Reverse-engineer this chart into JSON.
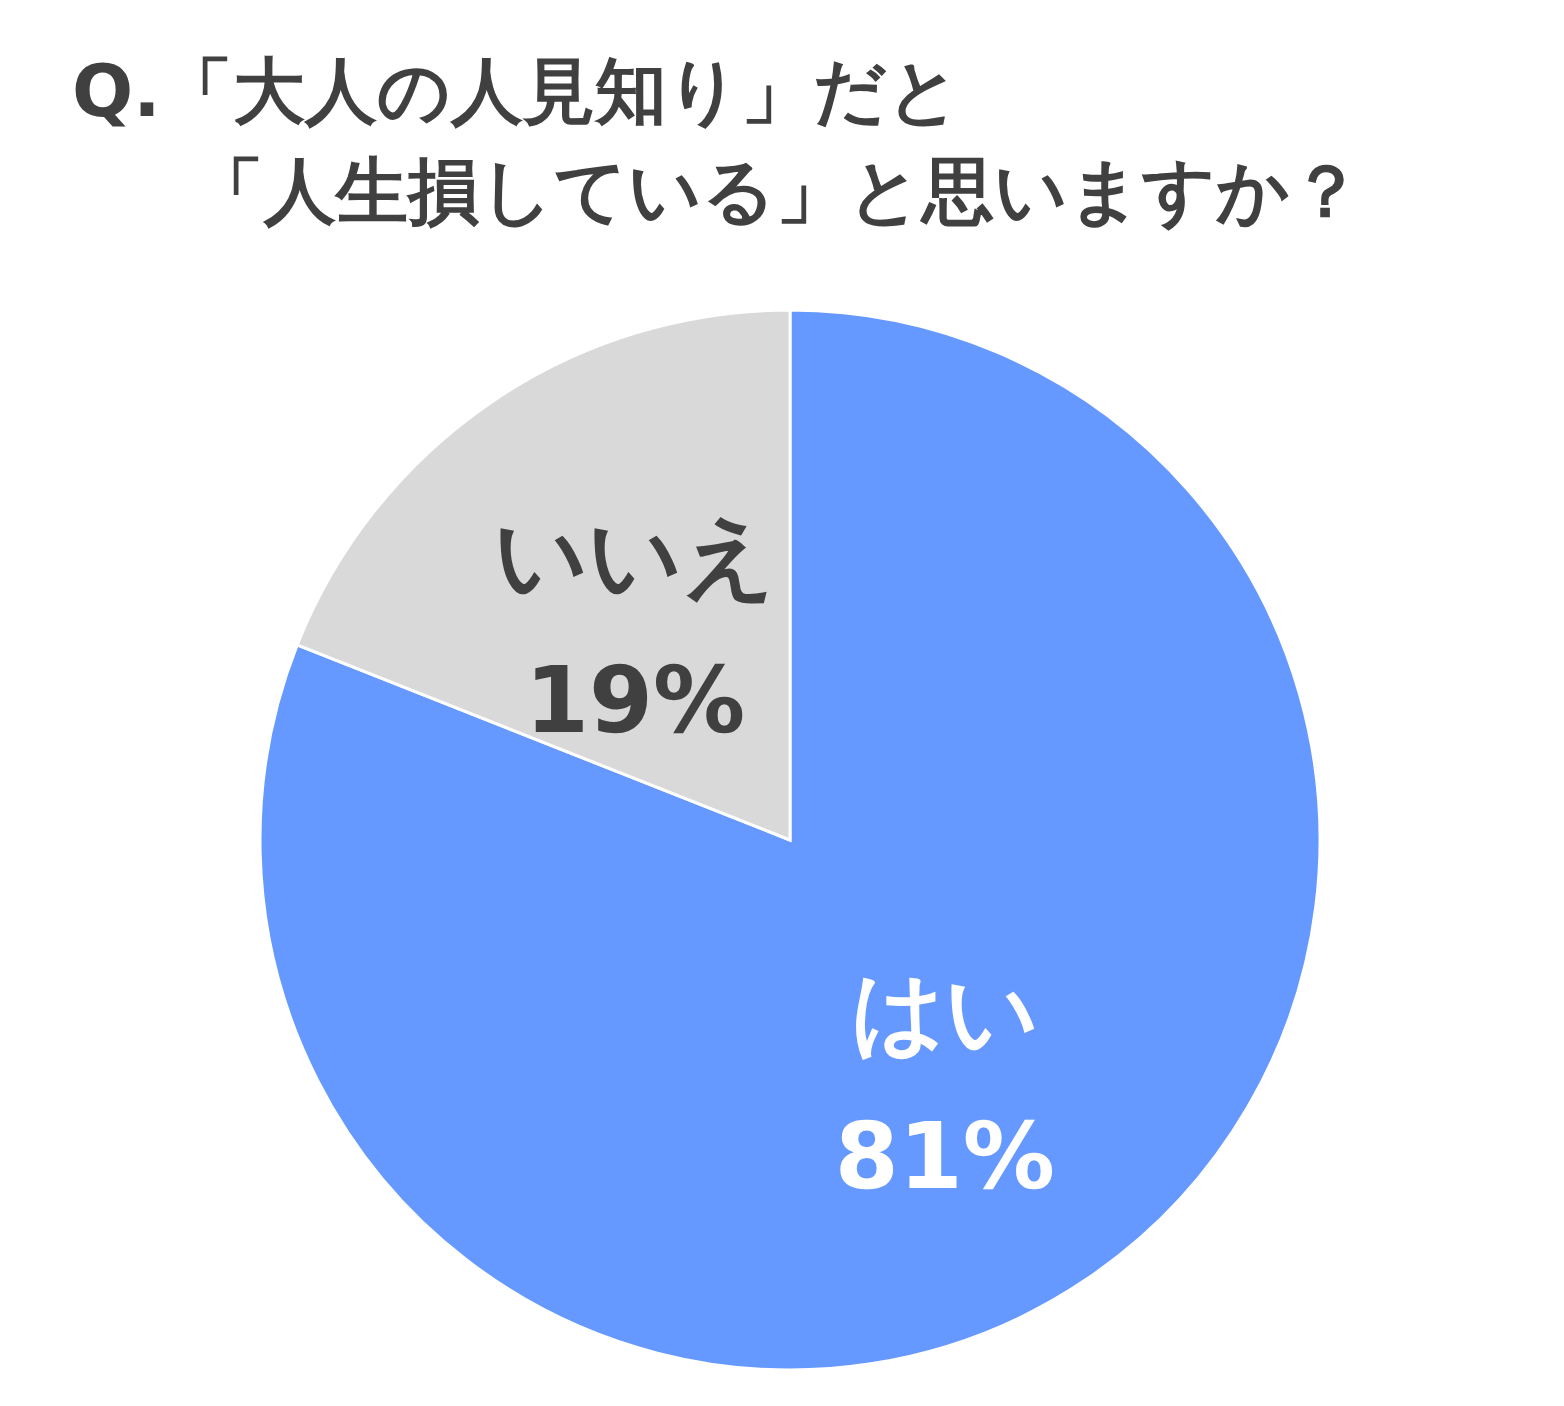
{
  "chart_data": {
    "type": "pie",
    "title": "Q.「大人の人見知り」だと",
    "subtitle": "「人生損している」と思いますか？",
    "categories": [
      "はい",
      "いいえ"
    ],
    "values": [
      81,
      19
    ],
    "colors": [
      "#6699ff",
      "#d9d9d9"
    ],
    "value_labels": [
      "81%",
      "19%"
    ],
    "legend": false
  }
}
